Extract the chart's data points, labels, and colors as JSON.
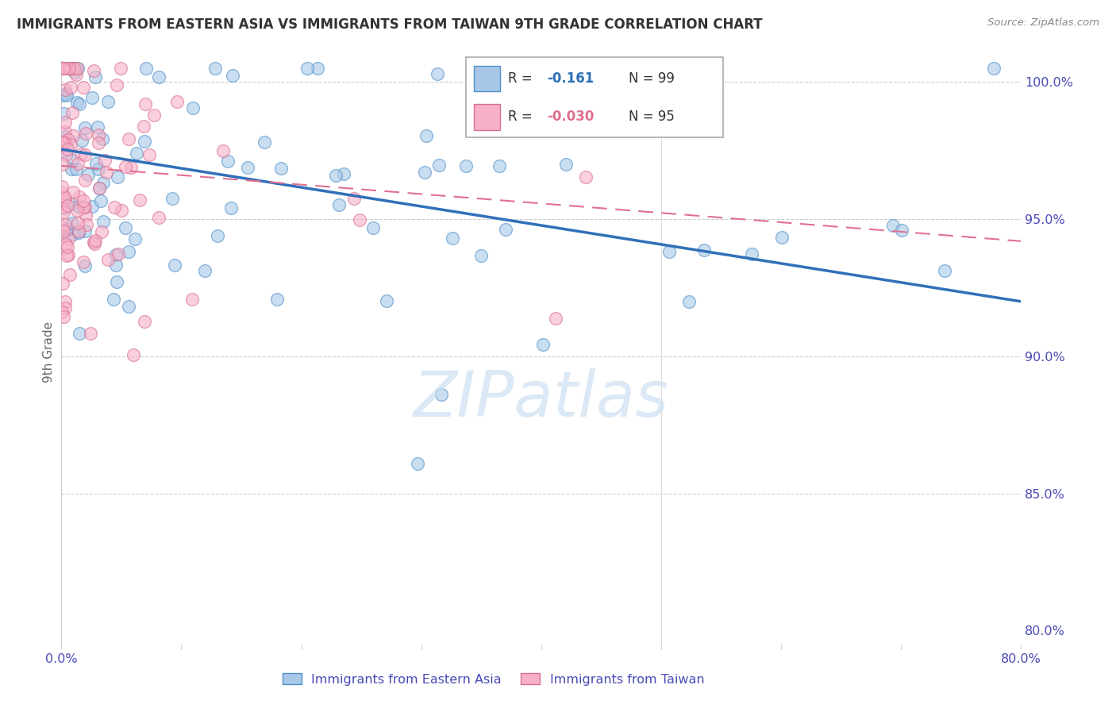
{
  "title": "IMMIGRANTS FROM EASTERN ASIA VS IMMIGRANTS FROM TAIWAN 9TH GRADE CORRELATION CHART",
  "source": "Source: ZipAtlas.com",
  "ylabel": "9th Grade",
  "xlim": [
    0.0,
    0.8
  ],
  "ylim": [
    0.795,
    1.008
  ],
  "yticks_right": [
    0.8,
    0.85,
    0.9,
    0.95,
    1.0
  ],
  "yticklabels_right": [
    "80.0%",
    "85.0%",
    "90.0%",
    "95.0%",
    "100.0%"
  ],
  "legend_R1": "-0.161",
  "legend_N1": "99",
  "legend_R2": "-0.030",
  "legend_N2": "95",
  "color_blue_fill": "#a8c8e8",
  "color_blue_edge": "#5090c8",
  "color_blue_line": "#3070b8",
  "color_pink_fill": "#f8b0c8",
  "color_pink_edge": "#d87090",
  "color_pink_line": "#e07090",
  "color_axis_text": "#4a4ab8",
  "color_title": "#333333",
  "color_source": "#888888",
  "watermark": "ZIPatlas",
  "blue_line_x0": 0.0,
  "blue_line_y0": 0.9755,
  "blue_line_x1": 0.8,
  "blue_line_y1": 0.92,
  "pink_line_x0": 0.0,
  "pink_line_y0": 0.9695,
  "pink_line_x1": 0.8,
  "pink_line_y1": 0.942,
  "seed": 77
}
